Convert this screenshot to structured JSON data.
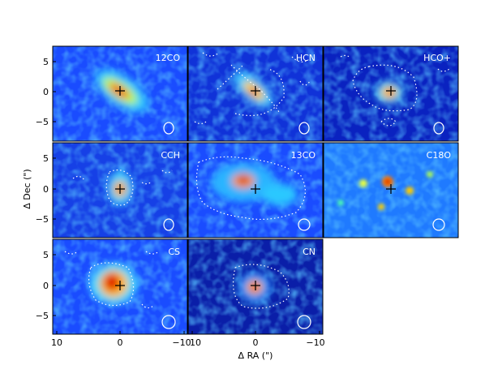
{
  "figure": {
    "xlabel": "Δ RA (\")",
    "ylabel": "Δ Dec (\")",
    "x_ticks": [
      "10",
      "0",
      "−10"
    ],
    "x_ticks_left_panel": [
      "10",
      "0",
      "−10"
    ],
    "y_ticks": [
      "5",
      "0",
      "−5"
    ],
    "colormap": "jet",
    "colors": {
      "background": "#00008f",
      "contour": "#ffffff",
      "marker": "#000000",
      "beam": "#ffffff"
    }
  },
  "panels": [
    {
      "label": "12CO"
    },
    {
      "label": "HCN"
    },
    {
      "label": "HCO+"
    },
    {
      "label": "CCH"
    },
    {
      "label": "13CO"
    },
    {
      "label": "C18O"
    },
    {
      "label": "CS"
    },
    {
      "label": "CN"
    }
  ]
}
